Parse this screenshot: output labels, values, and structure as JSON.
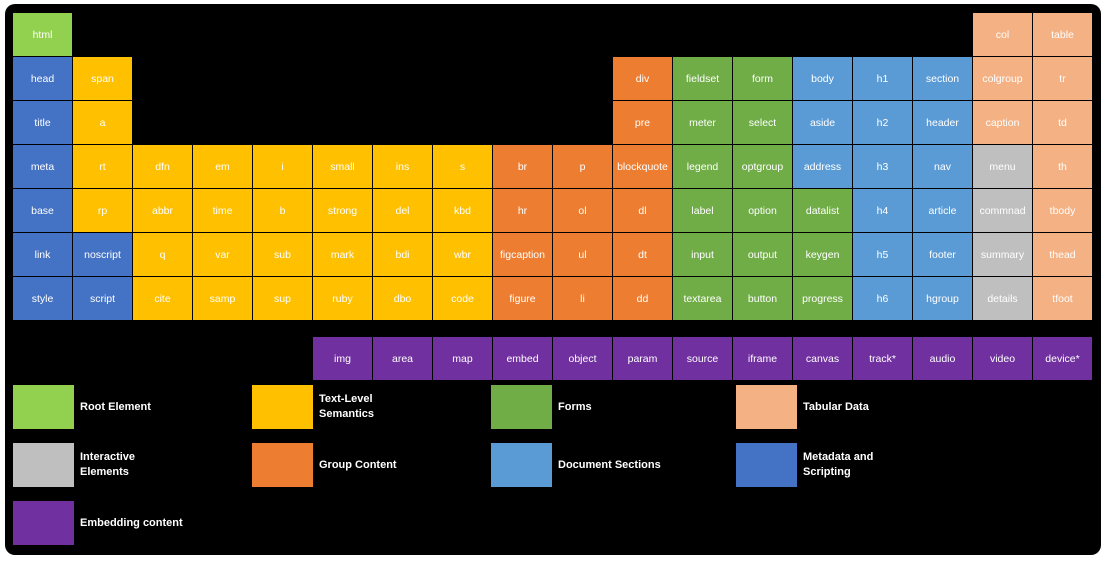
{
  "colors": {
    "root": "#92d050",
    "text": "#ffc000",
    "forms": "#70ad47",
    "tabular": "#f4b183",
    "interactive": "#bfbfbf",
    "group": "#ed7d31",
    "sections": "#5b9bd5",
    "metadata": "#4472c4",
    "embedding": "#7030a0"
  },
  "cells": [
    {
      "label": "html",
      "col": 0,
      "row": 0,
      "cat": "root"
    },
    {
      "label": "col",
      "col": 16,
      "row": 0,
      "cat": "tabular"
    },
    {
      "label": "table",
      "col": 17,
      "row": 0,
      "cat": "tabular"
    },
    {
      "label": "head",
      "col": 0,
      "row": 1,
      "cat": "metadata"
    },
    {
      "label": "span",
      "col": 1,
      "row": 1,
      "cat": "text"
    },
    {
      "label": "div",
      "col": 10,
      "row": 1,
      "cat": "group"
    },
    {
      "label": "fieldset",
      "col": 11,
      "row": 1,
      "cat": "forms"
    },
    {
      "label": "form",
      "col": 12,
      "row": 1,
      "cat": "forms"
    },
    {
      "label": "body",
      "col": 13,
      "row": 1,
      "cat": "sections"
    },
    {
      "label": "h1",
      "col": 14,
      "row": 1,
      "cat": "sections"
    },
    {
      "label": "section",
      "col": 15,
      "row": 1,
      "cat": "sections"
    },
    {
      "label": "colgroup",
      "col": 16,
      "row": 1,
      "cat": "tabular"
    },
    {
      "label": "tr",
      "col": 17,
      "row": 1,
      "cat": "tabular"
    },
    {
      "label": "title",
      "col": 0,
      "row": 2,
      "cat": "metadata"
    },
    {
      "label": "a",
      "col": 1,
      "row": 2,
      "cat": "text"
    },
    {
      "label": "pre",
      "col": 10,
      "row": 2,
      "cat": "group"
    },
    {
      "label": "meter",
      "col": 11,
      "row": 2,
      "cat": "forms"
    },
    {
      "label": "select",
      "col": 12,
      "row": 2,
      "cat": "forms"
    },
    {
      "label": "aside",
      "col": 13,
      "row": 2,
      "cat": "sections"
    },
    {
      "label": "h2",
      "col": 14,
      "row": 2,
      "cat": "sections"
    },
    {
      "label": "header",
      "col": 15,
      "row": 2,
      "cat": "sections"
    },
    {
      "label": "caption",
      "col": 16,
      "row": 2,
      "cat": "tabular"
    },
    {
      "label": "td",
      "col": 17,
      "row": 2,
      "cat": "tabular"
    },
    {
      "label": "meta",
      "col": 0,
      "row": 3,
      "cat": "metadata"
    },
    {
      "label": "rt",
      "col": 1,
      "row": 3,
      "cat": "text"
    },
    {
      "label": "dfn",
      "col": 2,
      "row": 3,
      "cat": "text"
    },
    {
      "label": "em",
      "col": 3,
      "row": 3,
      "cat": "text"
    },
    {
      "label": "i",
      "col": 4,
      "row": 3,
      "cat": "text"
    },
    {
      "label": "small",
      "col": 5,
      "row": 3,
      "cat": "text"
    },
    {
      "label": "ins",
      "col": 6,
      "row": 3,
      "cat": "text"
    },
    {
      "label": "s",
      "col": 7,
      "row": 3,
      "cat": "text"
    },
    {
      "label": "br",
      "col": 8,
      "row": 3,
      "cat": "group"
    },
    {
      "label": "p",
      "col": 9,
      "row": 3,
      "cat": "group"
    },
    {
      "label": "blockquote",
      "col": 10,
      "row": 3,
      "cat": "group"
    },
    {
      "label": "legend",
      "col": 11,
      "row": 3,
      "cat": "forms"
    },
    {
      "label": "optgroup",
      "col": 12,
      "row": 3,
      "cat": "forms"
    },
    {
      "label": "address",
      "col": 13,
      "row": 3,
      "cat": "sections"
    },
    {
      "label": "h3",
      "col": 14,
      "row": 3,
      "cat": "sections"
    },
    {
      "label": "nav",
      "col": 15,
      "row": 3,
      "cat": "sections"
    },
    {
      "label": "menu",
      "col": 16,
      "row": 3,
      "cat": "interactive"
    },
    {
      "label": "th",
      "col": 17,
      "row": 3,
      "cat": "tabular"
    },
    {
      "label": "base",
      "col": 0,
      "row": 4,
      "cat": "metadata"
    },
    {
      "label": "rp",
      "col": 1,
      "row": 4,
      "cat": "text"
    },
    {
      "label": "abbr",
      "col": 2,
      "row": 4,
      "cat": "text"
    },
    {
      "label": "time",
      "col": 3,
      "row": 4,
      "cat": "text"
    },
    {
      "label": "b",
      "col": 4,
      "row": 4,
      "cat": "text"
    },
    {
      "label": "strong",
      "col": 5,
      "row": 4,
      "cat": "text"
    },
    {
      "label": "del",
      "col": 6,
      "row": 4,
      "cat": "text"
    },
    {
      "label": "kbd",
      "col": 7,
      "row": 4,
      "cat": "text"
    },
    {
      "label": "hr",
      "col": 8,
      "row": 4,
      "cat": "group"
    },
    {
      "label": "ol",
      "col": 9,
      "row": 4,
      "cat": "group"
    },
    {
      "label": "dl",
      "col": 10,
      "row": 4,
      "cat": "group"
    },
    {
      "label": "label",
      "col": 11,
      "row": 4,
      "cat": "forms"
    },
    {
      "label": "option",
      "col": 12,
      "row": 4,
      "cat": "forms"
    },
    {
      "label": "datalist",
      "col": 13,
      "row": 4,
      "cat": "forms"
    },
    {
      "label": "h4",
      "col": 14,
      "row": 4,
      "cat": "sections"
    },
    {
      "label": "article",
      "col": 15,
      "row": 4,
      "cat": "sections"
    },
    {
      "label": "commnad",
      "col": 16,
      "row": 4,
      "cat": "interactive"
    },
    {
      "label": "tbody",
      "col": 17,
      "row": 4,
      "cat": "tabular"
    },
    {
      "label": "link",
      "col": 0,
      "row": 5,
      "cat": "metadata"
    },
    {
      "label": "noscript",
      "col": 1,
      "row": 5,
      "cat": "metadata"
    },
    {
      "label": "q",
      "col": 2,
      "row": 5,
      "cat": "text"
    },
    {
      "label": "var",
      "col": 3,
      "row": 5,
      "cat": "text"
    },
    {
      "label": "sub",
      "col": 4,
      "row": 5,
      "cat": "text"
    },
    {
      "label": "mark",
      "col": 5,
      "row": 5,
      "cat": "text"
    },
    {
      "label": "bdi",
      "col": 6,
      "row": 5,
      "cat": "text"
    },
    {
      "label": "wbr",
      "col": 7,
      "row": 5,
      "cat": "text"
    },
    {
      "label": "figcaption",
      "col": 8,
      "row": 5,
      "cat": "group"
    },
    {
      "label": "ul",
      "col": 9,
      "row": 5,
      "cat": "group"
    },
    {
      "label": "dt",
      "col": 10,
      "row": 5,
      "cat": "group"
    },
    {
      "label": "input",
      "col": 11,
      "row": 5,
      "cat": "forms"
    },
    {
      "label": "output",
      "col": 12,
      "row": 5,
      "cat": "forms"
    },
    {
      "label": "keygen",
      "col": 13,
      "row": 5,
      "cat": "forms"
    },
    {
      "label": "h5",
      "col": 14,
      "row": 5,
      "cat": "sections"
    },
    {
      "label": "footer",
      "col": 15,
      "row": 5,
      "cat": "sections"
    },
    {
      "label": "summary",
      "col": 16,
      "row": 5,
      "cat": "interactive"
    },
    {
      "label": "thead",
      "col": 17,
      "row": 5,
      "cat": "tabular"
    },
    {
      "label": "style",
      "col": 0,
      "row": 6,
      "cat": "metadata"
    },
    {
      "label": "script",
      "col": 1,
      "row": 6,
      "cat": "metadata"
    },
    {
      "label": "cite",
      "col": 2,
      "row": 6,
      "cat": "text"
    },
    {
      "label": "samp",
      "col": 3,
      "row": 6,
      "cat": "text"
    },
    {
      "label": "sup",
      "col": 4,
      "row": 6,
      "cat": "text"
    },
    {
      "label": "ruby",
      "col": 5,
      "row": 6,
      "cat": "text"
    },
    {
      "label": "dbo",
      "col": 6,
      "row": 6,
      "cat": "text"
    },
    {
      "label": "code",
      "col": 7,
      "row": 6,
      "cat": "text"
    },
    {
      "label": "figure",
      "col": 8,
      "row": 6,
      "cat": "group"
    },
    {
      "label": "li",
      "col": 9,
      "row": 6,
      "cat": "group"
    },
    {
      "label": "dd",
      "col": 10,
      "row": 6,
      "cat": "group"
    },
    {
      "label": "textarea",
      "col": 11,
      "row": 6,
      "cat": "forms"
    },
    {
      "label": "button",
      "col": 12,
      "row": 6,
      "cat": "forms"
    },
    {
      "label": "progress",
      "col": 13,
      "row": 6,
      "cat": "forms"
    },
    {
      "label": "h6",
      "col": 14,
      "row": 6,
      "cat": "sections"
    },
    {
      "label": "hgroup",
      "col": 15,
      "row": 6,
      "cat": "sections"
    },
    {
      "label": "details",
      "col": 16,
      "row": 6,
      "cat": "interactive"
    },
    {
      "label": "tfoot",
      "col": 17,
      "row": 6,
      "cat": "tabular"
    },
    {
      "label": "img",
      "col": 5,
      "row": 7,
      "cat": "embedding"
    },
    {
      "label": "area",
      "col": 6,
      "row": 7,
      "cat": "embedding"
    },
    {
      "label": "map",
      "col": 7,
      "row": 7,
      "cat": "embedding"
    },
    {
      "label": "embed",
      "col": 8,
      "row": 7,
      "cat": "embedding"
    },
    {
      "label": "object",
      "col": 9,
      "row": 7,
      "cat": "embedding"
    },
    {
      "label": "param",
      "col": 10,
      "row": 7,
      "cat": "embedding"
    },
    {
      "label": "source",
      "col": 11,
      "row": 7,
      "cat": "embedding"
    },
    {
      "label": "iframe",
      "col": 12,
      "row": 7,
      "cat": "embedding"
    },
    {
      "label": "canvas",
      "col": 13,
      "row": 7,
      "cat": "embedding"
    },
    {
      "label": "track*",
      "col": 14,
      "row": 7,
      "cat": "embedding"
    },
    {
      "label": "audio",
      "col": 15,
      "row": 7,
      "cat": "embedding"
    },
    {
      "label": "video",
      "col": 16,
      "row": 7,
      "cat": "embedding"
    },
    {
      "label": "device*",
      "col": 17,
      "row": 7,
      "cat": "embedding"
    }
  ],
  "legend": [
    {
      "label": "Root Element",
      "cat": "root"
    },
    {
      "label": "Text-Level\nSemantics",
      "cat": "text"
    },
    {
      "label": "Forms",
      "cat": "forms"
    },
    {
      "label": "Tabular Data",
      "cat": "tabular"
    },
    {
      "label": "Interactive\nElements",
      "cat": "interactive"
    },
    {
      "label": "Group Content",
      "cat": "group"
    },
    {
      "label": "Document Sections",
      "cat": "sections"
    },
    {
      "label": "Metadata and\nScripting",
      "cat": "metadata"
    },
    {
      "label": "Embedding content",
      "cat": "embedding"
    }
  ]
}
